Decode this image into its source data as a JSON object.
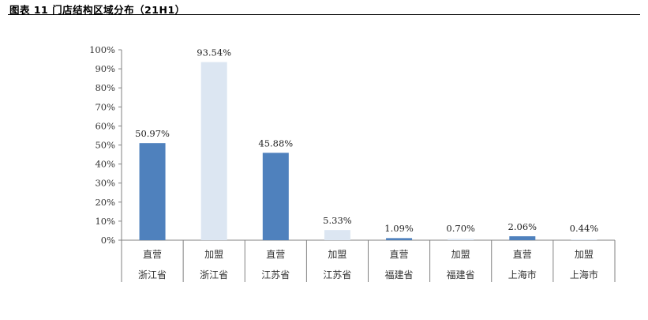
{
  "figure": {
    "title": "图表 11 门店结构区域分布（21H1）"
  },
  "chart_data": {
    "type": "bar",
    "title": "",
    "xlabel": "",
    "ylabel": "",
    "ylim": [
      0,
      100
    ],
    "y_ticks": [
      "0%",
      "10%",
      "20%",
      "30%",
      "40%",
      "50%",
      "60%",
      "70%",
      "80%",
      "90%",
      "100%"
    ],
    "grid": false,
    "legend": "none",
    "categories": [
      {
        "line1": "直营",
        "line2": "浙江省"
      },
      {
        "line1": "加盟",
        "line2": "浙江省"
      },
      {
        "line1": "直营",
        "line2": "江苏省"
      },
      {
        "line1": "加盟",
        "line2": "江苏省"
      },
      {
        "line1": "直营",
        "line2": "福建省"
      },
      {
        "line1": "加盟",
        "line2": "福建省"
      },
      {
        "line1": "直营",
        "line2": "上海市"
      },
      {
        "line1": "加盟",
        "line2": "上海市"
      }
    ],
    "values": [
      50.97,
      93.54,
      45.88,
      5.33,
      1.09,
      0.7,
      2.06,
      0.44
    ],
    "labels": [
      "50.97%",
      "93.54%",
      "45.88%",
      "5.33%",
      "1.09%",
      "0.70%",
      "2.06%",
      "0.44%"
    ],
    "colors": {
      "direct": "#4f81bd",
      "franchise": "#dce6f2"
    },
    "bar_types": [
      "direct",
      "franchise",
      "direct",
      "franchise",
      "direct",
      "franchise",
      "direct",
      "franchise"
    ]
  }
}
